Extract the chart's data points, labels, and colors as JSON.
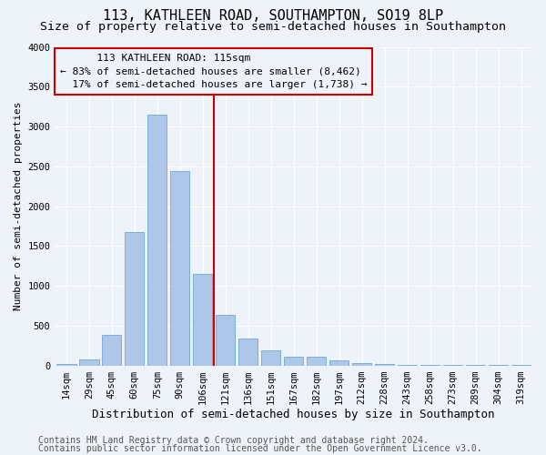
{
  "title": "113, KATHLEEN ROAD, SOUTHAMPTON, SO19 8LP",
  "subtitle": "Size of property relative to semi-detached houses in Southampton",
  "xlabel": "Distribution of semi-detached houses by size in Southampton",
  "ylabel": "Number of semi-detached properties",
  "footer1": "Contains HM Land Registry data © Crown copyright and database right 2024.",
  "footer2": "Contains public sector information licensed under the Open Government Licence v3.0.",
  "property_label": "113 KATHLEEN ROAD: 115sqm",
  "pct_smaller": 83,
  "count_smaller": 8462,
  "pct_larger": 17,
  "count_larger": 1738,
  "bar_categories": [
    "14sqm",
    "29sqm",
    "45sqm",
    "60sqm",
    "75sqm",
    "90sqm",
    "106sqm",
    "121sqm",
    "136sqm",
    "151sqm",
    "167sqm",
    "182sqm",
    "197sqm",
    "212sqm",
    "228sqm",
    "243sqm",
    "258sqm",
    "273sqm",
    "289sqm",
    "304sqm",
    "319sqm"
  ],
  "bar_values": [
    20,
    80,
    380,
    1670,
    3150,
    2440,
    1150,
    630,
    340,
    195,
    115,
    105,
    60,
    35,
    15,
    10,
    5,
    5,
    5,
    5,
    5
  ],
  "bar_color": "#aec6e8",
  "bar_edge_color": "#5a9fd4",
  "vline_color": "#cc0000",
  "vline_x_idx": 6.5,
  "ylim": [
    0,
    4000
  ],
  "yticks": [
    0,
    500,
    1000,
    1500,
    2000,
    2500,
    3000,
    3500,
    4000
  ],
  "bg_color": "#eef2f9",
  "grid_color": "#ffffff",
  "title_fontsize": 11,
  "subtitle_fontsize": 9.5,
  "xlabel_fontsize": 9,
  "ylabel_fontsize": 8,
  "tick_fontsize": 7.5,
  "ann_fontsize": 8,
  "footer_fontsize": 7
}
